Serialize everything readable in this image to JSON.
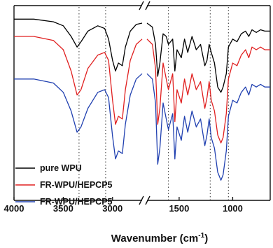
{
  "chart_data": {
    "type": "line",
    "xlabel": "Wavenumber (cm",
    "xlabel_sup": "-1",
    "xlabel_close": ")",
    "ylabel": "",
    "x_reversed": true,
    "axis_break": [
      2700,
      1800
    ],
    "xlim_left": [
      4000,
      2700
    ],
    "xlim_right": [
      1800,
      650
    ],
    "x_ticks": [
      {
        "value": 4000,
        "label": "4000"
      },
      {
        "value": 3500,
        "label": "3500"
      },
      {
        "value": 3000,
        "label": "3000"
      },
      {
        "value": 1500,
        "label": "1500"
      },
      {
        "value": 1000,
        "label": "1000"
      }
    ],
    "reference_lines": [
      3340,
      3070,
      1600,
      1210,
      1040
    ],
    "grid": false,
    "legend_position": "bottom-left",
    "series": [
      {
        "name": "pure WPU",
        "color": "#000000",
        "points": [
          [
            4000,
            7
          ],
          [
            3800,
            7
          ],
          [
            3600,
            9
          ],
          [
            3500,
            12
          ],
          [
            3420,
            20
          ],
          [
            3360,
            28
          ],
          [
            3320,
            24
          ],
          [
            3250,
            16
          ],
          [
            3150,
            12
          ],
          [
            3080,
            14
          ],
          [
            3040,
            22
          ],
          [
            3000,
            38
          ],
          [
            2970,
            46
          ],
          [
            2940,
            40
          ],
          [
            2900,
            42
          ],
          [
            2870,
            28
          ],
          [
            2820,
            16
          ],
          [
            2760,
            11
          ],
          [
            2700,
            10
          ],
          [
            1800,
            10
          ],
          [
            1750,
            13
          ],
          [
            1720,
            26
          ],
          [
            1700,
            50
          ],
          [
            1680,
            40
          ],
          [
            1650,
            18
          ],
          [
            1620,
            20
          ],
          [
            1600,
            26
          ],
          [
            1560,
            22
          ],
          [
            1540,
            46
          ],
          [
            1520,
            30
          ],
          [
            1480,
            36
          ],
          [
            1450,
            22
          ],
          [
            1420,
            32
          ],
          [
            1380,
            20
          ],
          [
            1340,
            30
          ],
          [
            1300,
            26
          ],
          [
            1260,
            42
          ],
          [
            1240,
            38
          ],
          [
            1220,
            26
          ],
          [
            1200,
            32
          ],
          [
            1170,
            40
          ],
          [
            1140,
            58
          ],
          [
            1110,
            62
          ],
          [
            1090,
            58
          ],
          [
            1060,
            48
          ],
          [
            1040,
            28
          ],
          [
            1000,
            22
          ],
          [
            960,
            24
          ],
          [
            920,
            18
          ],
          [
            880,
            16
          ],
          [
            850,
            20
          ],
          [
            820,
            15
          ],
          [
            780,
            17
          ],
          [
            740,
            15
          ],
          [
            700,
            16
          ],
          [
            650,
            16
          ]
        ]
      },
      {
        "name": "FR-WPU/HEPCP5",
        "color": "#e02020",
        "points": [
          [
            4000,
            20
          ],
          [
            3800,
            20
          ],
          [
            3600,
            23
          ],
          [
            3500,
            30
          ],
          [
            3420,
            46
          ],
          [
            3360,
            64
          ],
          [
            3320,
            60
          ],
          [
            3250,
            44
          ],
          [
            3150,
            34
          ],
          [
            3080,
            32
          ],
          [
            3040,
            38
          ],
          [
            3000,
            68
          ],
          [
            2970,
            86
          ],
          [
            2940,
            80
          ],
          [
            2900,
            82
          ],
          [
            2870,
            60
          ],
          [
            2820,
            38
          ],
          [
            2760,
            26
          ],
          [
            2700,
            22
          ],
          [
            1800,
            22
          ],
          [
            1750,
            26
          ],
          [
            1720,
            44
          ],
          [
            1700,
            86
          ],
          [
            1680,
            74
          ],
          [
            1650,
            40
          ],
          [
            1620,
            52
          ],
          [
            1600,
            60
          ],
          [
            1560,
            48
          ],
          [
            1540,
            84
          ],
          [
            1520,
            60
          ],
          [
            1480,
            70
          ],
          [
            1450,
            52
          ],
          [
            1420,
            64
          ],
          [
            1380,
            48
          ],
          [
            1340,
            60
          ],
          [
            1300,
            54
          ],
          [
            1260,
            74
          ],
          [
            1240,
            66
          ],
          [
            1220,
            54
          ],
          [
            1200,
            68
          ],
          [
            1170,
            76
          ],
          [
            1140,
            94
          ],
          [
            1110,
            100
          ],
          [
            1090,
            96
          ],
          [
            1060,
            78
          ],
          [
            1040,
            52
          ],
          [
            1000,
            40
          ],
          [
            960,
            42
          ],
          [
            920,
            34
          ],
          [
            880,
            30
          ],
          [
            850,
            36
          ],
          [
            820,
            28
          ],
          [
            780,
            30
          ],
          [
            740,
            28
          ],
          [
            700,
            30
          ],
          [
            650,
            30
          ]
        ]
      },
      {
        "name": "FR-WPU/HEPCP5",
        "color": "#2040b0",
        "points": [
          [
            4000,
            52
          ],
          [
            3800,
            52
          ],
          [
            3600,
            55
          ],
          [
            3500,
            62
          ],
          [
            3420,
            76
          ],
          [
            3360,
            92
          ],
          [
            3320,
            88
          ],
          [
            3250,
            74
          ],
          [
            3150,
            62
          ],
          [
            3080,
            60
          ],
          [
            3040,
            66
          ],
          [
            3000,
            95
          ],
          [
            2970,
            112
          ],
          [
            2940,
            106
          ],
          [
            2900,
            108
          ],
          [
            2870,
            86
          ],
          [
            2820,
            64
          ],
          [
            2760,
            52
          ],
          [
            2700,
            48
          ],
          [
            1800,
            48
          ],
          [
            1750,
            52
          ],
          [
            1720,
            70
          ],
          [
            1700,
            116
          ],
          [
            1680,
            104
          ],
          [
            1650,
            70
          ],
          [
            1620,
            82
          ],
          [
            1600,
            90
          ],
          [
            1560,
            78
          ],
          [
            1540,
            112
          ],
          [
            1520,
            88
          ],
          [
            1480,
            98
          ],
          [
            1450,
            80
          ],
          [
            1420,
            92
          ],
          [
            1380,
            76
          ],
          [
            1340,
            88
          ],
          [
            1300,
            82
          ],
          [
            1260,
            102
          ],
          [
            1240,
            94
          ],
          [
            1220,
            82
          ],
          [
            1200,
            96
          ],
          [
            1170,
            104
          ],
          [
            1140,
            122
          ],
          [
            1110,
            128
          ],
          [
            1090,
            124
          ],
          [
            1060,
            106
          ],
          [
            1040,
            80
          ],
          [
            1000,
            68
          ],
          [
            960,
            70
          ],
          [
            920,
            62
          ],
          [
            880,
            58
          ],
          [
            850,
            64
          ],
          [
            820,
            56
          ],
          [
            780,
            58
          ],
          [
            740,
            56
          ],
          [
            700,
            58
          ],
          [
            650,
            58
          ]
        ]
      }
    ]
  }
}
